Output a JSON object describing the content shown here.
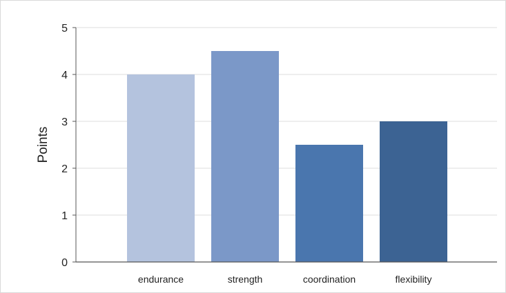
{
  "chart_data": {
    "type": "bar",
    "title": "",
    "xlabel": "",
    "ylabel": "Points",
    "categories": [
      "endurance",
      "strength",
      "coordination",
      "flexibility"
    ],
    "values": [
      4,
      4.5,
      2.5,
      3
    ],
    "ylim": [
      0,
      5
    ],
    "yticks": [
      "0",
      "1",
      "2",
      "3",
      "4",
      "5"
    ],
    "grid": true,
    "legend": "none",
    "colors": [
      "#b4c3de",
      "#7b98c8",
      "#4a76ae",
      "#3c6393"
    ],
    "grid_color": "#dddddd",
    "axis_color": "#555555"
  }
}
